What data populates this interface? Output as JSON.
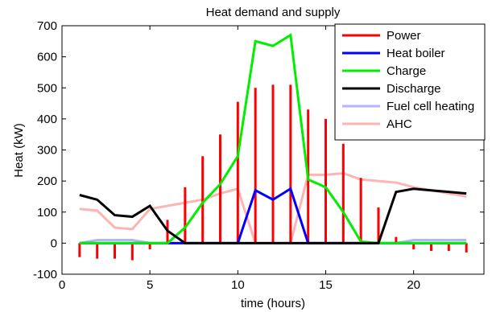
{
  "chart_data": {
    "type": "line",
    "title": "Heat demand and supply",
    "xlabel": "time (hours)",
    "ylabel": "Heat (kW)",
    "xlim": [
      0,
      24
    ],
    "ylim": [
      -100,
      700
    ],
    "xticks": [
      0,
      5,
      10,
      15,
      20
    ],
    "yticks": [
      -100,
      0,
      100,
      200,
      300,
      400,
      500,
      600,
      700
    ],
    "grid": false,
    "legend_position": "top-right",
    "x": [
      1,
      2,
      3,
      4,
      5,
      6,
      7,
      8,
      9,
      10,
      11,
      12,
      13,
      14,
      15,
      16,
      17,
      18,
      19,
      20,
      21,
      22,
      23
    ],
    "series": [
      {
        "name": "Power",
        "style": "stem",
        "color": "#ff0000",
        "values": [
          -45,
          -50,
          -50,
          -55,
          -20,
          75,
          180,
          280,
          350,
          455,
          500,
          510,
          510,
          430,
          400,
          320,
          210,
          115,
          20,
          -20,
          -25,
          -25,
          -30
        ]
      },
      {
        "name": "Heat boiler",
        "color": "#0000ff",
        "values": [
          0,
          0,
          0,
          0,
          0,
          0,
          0,
          0,
          0,
          0,
          170,
          140,
          175,
          0,
          0,
          0,
          0,
          0,
          0,
          0,
          0,
          0,
          0
        ]
      },
      {
        "name": "Charge",
        "color": "#00ee00",
        "values": [
          0,
          0,
          0,
          0,
          0,
          0,
          50,
          130,
          190,
          280,
          650,
          635,
          670,
          205,
          180,
          100,
          5,
          0,
          0,
          0,
          0,
          0,
          0
        ]
      },
      {
        "name": "Discharge",
        "color": "#000000",
        "values": [
          155,
          140,
          90,
          85,
          120,
          40,
          0,
          0,
          0,
          0,
          0,
          0,
          0,
          0,
          0,
          0,
          0,
          0,
          165,
          175,
          170,
          165,
          160
        ]
      },
      {
        "name": "Fuel cell heating",
        "color": "#b3b3ff",
        "values": [
          0,
          10,
          10,
          10,
          0,
          0,
          0,
          0,
          0,
          0,
          0,
          0,
          0,
          0,
          0,
          0,
          0,
          0,
          0,
          10,
          10,
          10,
          10
        ]
      },
      {
        "name": "AHC",
        "color": "#ffb3b3",
        "values": [
          110,
          105,
          50,
          45,
          110,
          120,
          130,
          140,
          160,
          175,
          0,
          0,
          0,
          220,
          220,
          225,
          205,
          200,
          195,
          180,
          170,
          160,
          150
        ]
      }
    ]
  }
}
